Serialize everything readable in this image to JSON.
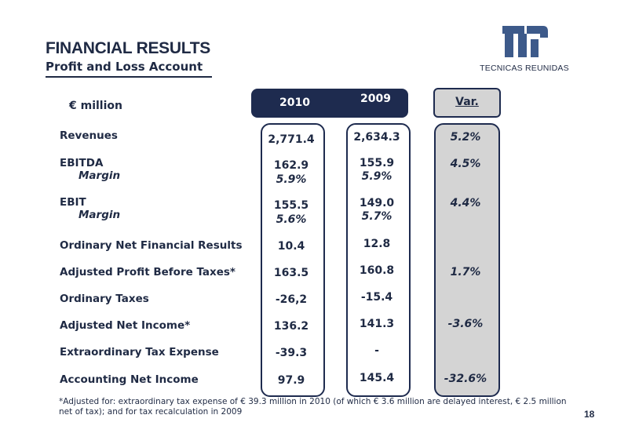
{
  "header": {
    "title": "FINANCIAL RESULTS",
    "subtitle": "Profit and Loss Account"
  },
  "logo": {
    "text": "TECNICAS REUNIDAS",
    "color": "#3d5a8a"
  },
  "table": {
    "unit_label": "€ million",
    "col_2010": "2010",
    "col_2009": "2009",
    "col_var": "Var.",
    "rows": {
      "revenues": {
        "label": "Revenues",
        "v2010": "2,771.4",
        "v2009": "2,634.3",
        "var": "5.2%"
      },
      "ebitda": {
        "label": "EBITDA",
        "v2010": "162.9",
        "v2009": "155.9",
        "var": "4.5%"
      },
      "ebitda_margin": {
        "label": "Margin",
        "v2010": "5.9%",
        "v2009": "5.9%"
      },
      "ebit": {
        "label": "EBIT",
        "v2010": "155.5",
        "v2009": "149.0",
        "var": "4.4%"
      },
      "ebit_margin": {
        "label": "Margin",
        "v2010": "5.6%",
        "v2009": "5.7%"
      },
      "net_financial": {
        "label": "Ordinary Net Financial Results",
        "v2010": "10.4",
        "v2009": "12.8"
      },
      "pbt": {
        "label": "Adjusted Profit Before Taxes*",
        "v2010": "163.5",
        "v2009": "160.8",
        "var": "1.7%"
      },
      "taxes": {
        "label": "Ordinary Taxes",
        "v2010": "-26,2",
        "v2009": "-15.4"
      },
      "net_income": {
        "label": "Adjusted Net Income*",
        "v2010": "136.2",
        "v2009": "141.3",
        "var": "-3.6%"
      },
      "extra_tax": {
        "label": "Extraordinary Tax Expense",
        "v2010": "-39.3",
        "v2009": "-"
      },
      "accounting_ni": {
        "label": "Accounting Net Income",
        "v2010": "97.9",
        "v2009": "145.4",
        "var": "-32.6%"
      }
    }
  },
  "footnote": "*Adjusted for: extraordinary tax expense of € 39.3 million in 2010 (of which € 3.6 million are delayed interest, € 2.5 million net of tax); and for tax recalculation in 2009",
  "page_number": "18",
  "colors": {
    "navy": "#1e2b4f",
    "var_gray": "#d4d4d4"
  }
}
